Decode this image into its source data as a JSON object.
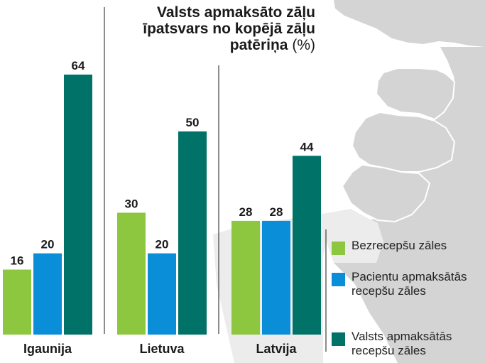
{
  "title": {
    "line1": "Valsts apmaksāto zāļu",
    "line2": "īpatsvars no kopējā zāļu",
    "line3": "patēriņa",
    "unit": "(%)"
  },
  "colors": {
    "green": "#8dc63f",
    "blue": "#0b8ed8",
    "teal": "#007267",
    "map": "#d4d4d4",
    "map_border": "#ffffff"
  },
  "chart_data": {
    "type": "bar",
    "title": "Valsts apmaksāto zāļu īpatsvars no kopējā zāļu patēriņa (%)",
    "categories": [
      "Igaunija",
      "Lietuva",
      "Latvija"
    ],
    "series": [
      {
        "name": "Bezrecepšu zāles",
        "values": [
          16,
          30,
          28
        ]
      },
      {
        "name": "Pacientu apmaksātās recepšu zāles",
        "values": [
          20,
          20,
          28
        ]
      },
      {
        "name": "Valsts apmaksātās recepšu zāles",
        "values": [
          64,
          50,
          44
        ]
      }
    ],
    "ylim": [
      0,
      64
    ],
    "grid": false,
    "legend": "bottom-right"
  },
  "legend": {
    "items": [
      {
        "label": "Bezrecepšu zāles"
      },
      {
        "label": "Pacientu apmaksātās recepšu zāles"
      },
      {
        "label": "Valsts apmaksātās recepšu zāles"
      }
    ]
  }
}
